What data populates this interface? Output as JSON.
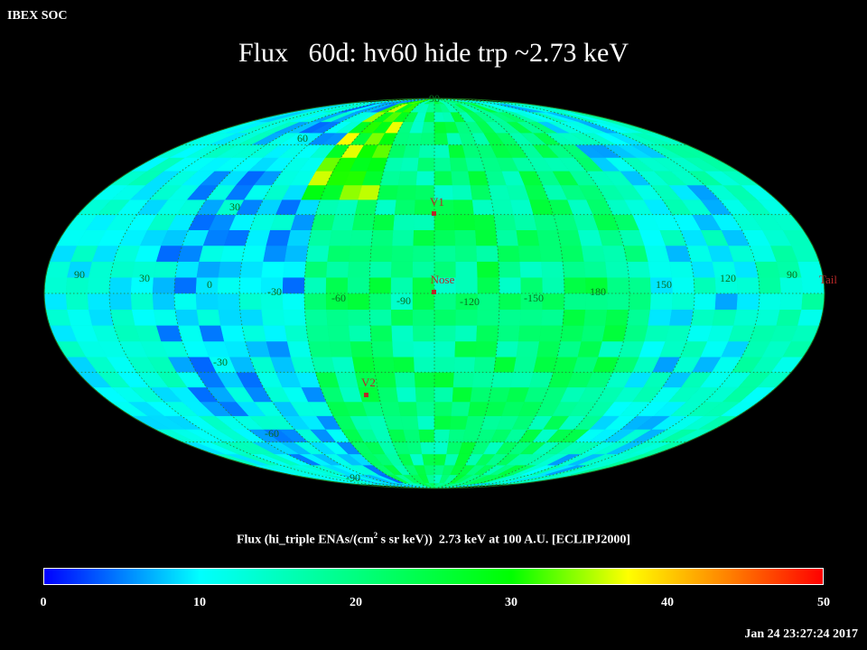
{
  "header": {
    "org": "IBEX SOC",
    "title": "Flux   60d: hv60 hide trp ~2.73 keV"
  },
  "map": {
    "projection": "mollweide",
    "meridian_labels": [
      "90",
      "30",
      "0",
      "-30",
      "-60",
      "-90",
      "-120",
      "-150",
      "180",
      "150",
      "120",
      "90"
    ],
    "parallel_labels": [
      "90",
      "60",
      "30",
      "-30",
      "-60",
      "-90"
    ],
    "markers": [
      {
        "name": "V1",
        "lon": -95,
        "lat": 36
      },
      {
        "name": "Nose",
        "lon": -105,
        "lat": -2
      },
      {
        "name": "V2",
        "lon": -70,
        "lat": -33
      },
      {
        "name": "Tail",
        "lon": 75,
        "lat": 0
      }
    ],
    "marker_color": "#c83232"
  },
  "colorbar": {
    "title_pre": "Flux (hi_triple ENAs/(cm",
    "title_sup": "2",
    "title_post": " s sr keV))  2.73 keV at 100 A.U. [ECLIPJ2000]",
    "min": 0,
    "max": 50,
    "ticks": [
      "0",
      "10",
      "20",
      "30",
      "40",
      "50"
    ]
  },
  "footer": {
    "timestamp": "Jan 24 23:27:24 2017"
  }
}
